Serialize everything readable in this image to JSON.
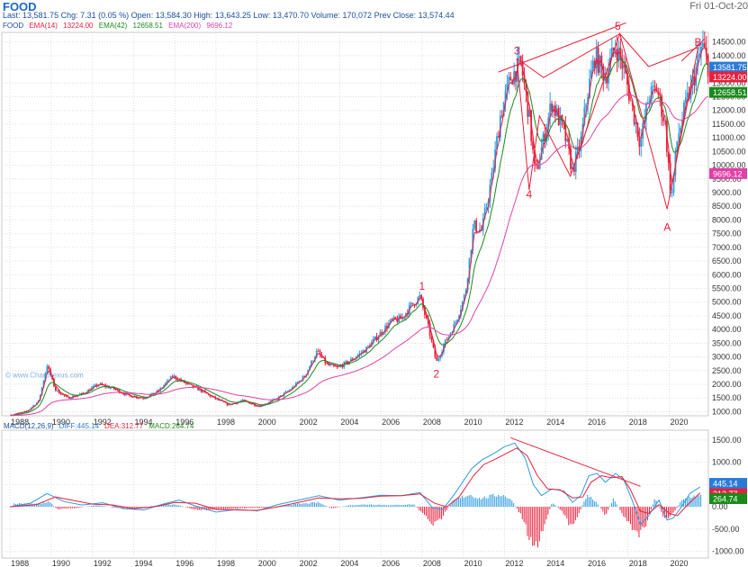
{
  "header": {
    "title": "FOOD",
    "date": "Fri 01-Oct-20",
    "last_label": "Last:",
    "last": "13,581.75",
    "chg_label": "Chg:",
    "chg": "7.31 (0.05 %)",
    "open_label": "Open:",
    "open": "13,584.30",
    "high_label": "High:",
    "high": "13,643.25",
    "low_label": "Low:",
    "low": "13,470.70",
    "volume_label": "Volume:",
    "volume": "170,072",
    "prev_label": "Prev Close:",
    "prev": "13,574.44",
    "legend": {
      "symbol": "FOOD",
      "ema14": "EMA(14)",
      "ema14_val": "13224.00",
      "ema42": "EMA(42)",
      "ema42_val": "12658.51",
      "ema200": "EMA(200)",
      "ema200_val": "9696.12"
    }
  },
  "chart_data": [
    {
      "type": "candlestick",
      "title": "FOOD",
      "x_ticks": [
        "1988",
        "1990",
        "1992",
        "1994",
        "1996",
        "1998",
        "2000",
        "2002",
        "2004",
        "2006",
        "2008",
        "2010",
        "2012",
        "2014",
        "2016",
        "2018",
        "2020"
      ],
      "xlim": [
        1987.6,
        2021.9
      ],
      "y_ticks": [
        1000,
        1500,
        2000,
        2500,
        3000,
        3500,
        4000,
        4500,
        5000,
        5500,
        6000,
        6500,
        7000,
        7500,
        8000,
        8500,
        9000,
        9500,
        10000,
        10500,
        11000,
        11500,
        12000,
        12500,
        13000,
        13500,
        14000,
        14500
      ],
      "ylim": [
        850,
        14850
      ],
      "price_path": [
        [
          1988.0,
          880
        ],
        [
          1988.8,
          1000
        ],
        [
          1989.4,
          1400
        ],
        [
          1989.8,
          2700
        ],
        [
          1990.2,
          1800
        ],
        [
          1990.8,
          1500
        ],
        [
          1991.5,
          1650
        ],
        [
          1992.3,
          2000
        ],
        [
          1993.0,
          1850
        ],
        [
          1993.7,
          1600
        ],
        [
          1994.5,
          1500
        ],
        [
          1995.2,
          1750
        ],
        [
          1995.9,
          2300
        ],
        [
          1996.6,
          2000
        ],
        [
          1997.2,
          1800
        ],
        [
          1997.9,
          1500
        ],
        [
          1998.6,
          1250
        ],
        [
          1999.3,
          1400
        ],
        [
          2000.1,
          1200
        ],
        [
          2000.9,
          1450
        ],
        [
          2001.6,
          1800
        ],
        [
          2002.3,
          2300
        ],
        [
          2002.9,
          3200
        ],
        [
          2003.4,
          2700
        ],
        [
          2003.9,
          2600
        ],
        [
          2004.6,
          2900
        ],
        [
          2005.3,
          3300
        ],
        [
          2005.9,
          3800
        ],
        [
          2006.5,
          4300
        ],
        [
          2007.0,
          4400
        ],
        [
          2007.5,
          4900
        ],
        [
          2007.9,
          5200
        ],
        [
          2008.3,
          4100
        ],
        [
          2008.7,
          2800
        ],
        [
          2009.1,
          3500
        ],
        [
          2009.6,
          4200
        ],
        [
          2010.1,
          5300
        ],
        [
          2010.5,
          7800
        ],
        [
          2010.9,
          7600
        ],
        [
          2011.4,
          9600
        ],
        [
          2011.8,
          11800
        ],
        [
          2012.3,
          13200
        ],
        [
          2012.8,
          13700
        ],
        [
          2013.2,
          11800
        ],
        [
          2013.5,
          9600
        ],
        [
          2013.8,
          10600
        ],
        [
          2014.3,
          12300
        ],
        [
          2014.9,
          11200
        ],
        [
          2015.3,
          9800
        ],
        [
          2015.7,
          10800
        ],
        [
          2016.0,
          12500
        ],
        [
          2016.4,
          14000
        ],
        [
          2016.9,
          13200
        ],
        [
          2017.4,
          14400
        ],
        [
          2017.8,
          13500
        ],
        [
          2018.2,
          12100
        ],
        [
          2018.6,
          10800
        ],
        [
          2019.0,
          12500
        ],
        [
          2019.4,
          12800
        ],
        [
          2019.8,
          11500
        ],
        [
          2020.1,
          8700
        ],
        [
          2020.4,
          11000
        ],
        [
          2020.8,
          12200
        ],
        [
          2021.2,
          13200
        ],
        [
          2021.6,
          14400
        ],
        [
          2021.9,
          13580
        ]
      ],
      "series": [
        {
          "name": "EMA(14)",
          "color": "#e8203c",
          "last": 13224.0
        },
        {
          "name": "EMA(42)",
          "color": "#1a8a1a",
          "last": 12658.51
        },
        {
          "name": "EMA(200)",
          "color": "#e040a8",
          "last": 9696.12
        }
      ],
      "value_labels": [
        {
          "text": "13581.75",
          "value": 13581.75,
          "color": "#2b7bd6"
        },
        {
          "text": "13224.00",
          "value": 13224.0,
          "color": "#e8203c"
        },
        {
          "text": "12658.51",
          "value": 12658.51,
          "color": "#1a8a1a"
        },
        {
          "text": "9696.12",
          "value": 9696.12,
          "color": "#e040a8"
        }
      ],
      "annotations": {
        "labels": [
          {
            "text": "1",
            "x": 2008.0,
            "y": 5450
          },
          {
            "text": "2",
            "x": 2008.7,
            "y": 2250
          },
          {
            "text": "3",
            "x": 2012.6,
            "y": 14050
          },
          {
            "text": "4",
            "x": 2013.2,
            "y": 8800
          },
          {
            "text": "5",
            "x": 2017.5,
            "y": 14950
          },
          {
            "text": "A",
            "x": 2019.9,
            "y": 7600
          },
          {
            "text": "B",
            "x": 2021.4,
            "y": 14350
          }
        ],
        "lines": [
          [
            [
              2011.7,
              13400
            ],
            [
              2017.9,
              15200
            ]
          ],
          [
            [
              2020.6,
              13800
            ],
            [
              2021.7,
              14600
            ]
          ],
          [
            [
              2012.6,
              13900
            ],
            [
              2013.9,
              13200
            ],
            [
              2017.6,
              14800
            ],
            [
              2019.0,
              13600
            ],
            [
              2021.4,
              14300
            ]
          ],
          [
            [
              2012.6,
              13900
            ],
            [
              2013.2,
              9100
            ],
            [
              2013.7,
              11800
            ],
            [
              2015.2,
              9600
            ],
            [
              2017.6,
              14800
            ],
            [
              2019.9,
              8400
            ],
            [
              2021.4,
              14300
            ]
          ]
        ]
      }
    },
    {
      "type": "macd",
      "title": "MACD(12,26,9)",
      "diff_label": "DIFF:445.14",
      "dea_label": "DEA:312.77",
      "macd_label": "MACD:264.74",
      "y_ticks": [
        -1000,
        -500,
        0,
        500,
        1000,
        1500
      ],
      "ylim": [
        -1150,
        1720
      ],
      "diff_path": [
        [
          1988.0,
          0
        ],
        [
          1989.0,
          80
        ],
        [
          1989.8,
          300
        ],
        [
          1990.6,
          120
        ],
        [
          1991.5,
          40
        ],
        [
          1992.5,
          90
        ],
        [
          1993.5,
          -40
        ],
        [
          1994.5,
          -70
        ],
        [
          1995.5,
          70
        ],
        [
          1996.2,
          150
        ],
        [
          1997.0,
          20
        ],
        [
          1998.0,
          -120
        ],
        [
          1999.0,
          -60
        ],
        [
          2000.0,
          -90
        ],
        [
          2001.0,
          50
        ],
        [
          2002.0,
          150
        ],
        [
          2003.0,
          250
        ],
        [
          2004.0,
          150
        ],
        [
          2005.0,
          200
        ],
        [
          2006.0,
          260
        ],
        [
          2007.0,
          250
        ],
        [
          2007.9,
          320
        ],
        [
          2008.5,
          -20
        ],
        [
          2009.0,
          -60
        ],
        [
          2009.6,
          300
        ],
        [
          2010.4,
          850
        ],
        [
          2010.9,
          1050
        ],
        [
          2011.5,
          1200
        ],
        [
          2012.0,
          1350
        ],
        [
          2012.5,
          1430
        ],
        [
          2013.0,
          1100
        ],
        [
          2013.4,
          500
        ],
        [
          2013.8,
          250
        ],
        [
          2014.3,
          400
        ],
        [
          2014.9,
          350
        ],
        [
          2015.3,
          100
        ],
        [
          2015.7,
          250
        ],
        [
          2016.1,
          700
        ],
        [
          2016.5,
          750
        ],
        [
          2016.9,
          550
        ],
        [
          2017.4,
          750
        ],
        [
          2017.8,
          600
        ],
        [
          2018.2,
          150
        ],
        [
          2018.6,
          -400
        ],
        [
          2019.0,
          -200
        ],
        [
          2019.5,
          150
        ],
        [
          2019.9,
          -300
        ],
        [
          2020.2,
          -250
        ],
        [
          2020.6,
          0
        ],
        [
          2021.0,
          300
        ],
        [
          2021.5,
          445
        ]
      ],
      "dea_path": [
        [
          1988.0,
          0
        ],
        [
          1989.3,
          50
        ],
        [
          1990.2,
          220
        ],
        [
          1991.0,
          150
        ],
        [
          1992.0,
          60
        ],
        [
          1993.0,
          40
        ],
        [
          1994.0,
          -40
        ],
        [
          1995.0,
          0
        ],
        [
          1996.0,
          100
        ],
        [
          1997.0,
          80
        ],
        [
          1998.0,
          -60
        ],
        [
          1999.0,
          -70
        ],
        [
          2000.0,
          -80
        ],
        [
          2001.0,
          0
        ],
        [
          2002.0,
          100
        ],
        [
          2003.0,
          200
        ],
        [
          2004.0,
          180
        ],
        [
          2005.0,
          190
        ],
        [
          2006.0,
          240
        ],
        [
          2007.0,
          250
        ],
        [
          2007.9,
          290
        ],
        [
          2008.6,
          80
        ],
        [
          2009.2,
          0
        ],
        [
          2009.8,
          220
        ],
        [
          2010.5,
          700
        ],
        [
          2011.0,
          950
        ],
        [
          2011.6,
          1080
        ],
        [
          2012.1,
          1200
        ],
        [
          2012.6,
          1320
        ],
        [
          2013.1,
          1150
        ],
        [
          2013.6,
          700
        ],
        [
          2014.1,
          400
        ],
        [
          2014.7,
          380
        ],
        [
          2015.3,
          200
        ],
        [
          2015.8,
          220
        ],
        [
          2016.2,
          550
        ],
        [
          2016.7,
          700
        ],
        [
          2017.2,
          650
        ],
        [
          2017.7,
          680
        ],
        [
          2018.1,
          400
        ],
        [
          2018.6,
          -100
        ],
        [
          2019.0,
          -150
        ],
        [
          2019.5,
          50
        ],
        [
          2020.0,
          -150
        ],
        [
          2020.4,
          -200
        ],
        [
          2020.9,
          50
        ],
        [
          2021.5,
          313
        ]
      ],
      "histogram": [
        [
          1989.5,
          80
        ],
        [
          1989.9,
          120
        ],
        [
          1990.3,
          -60
        ],
        [
          1990.7,
          -40
        ],
        [
          1991.2,
          -30
        ],
        [
          1992.2,
          40
        ],
        [
          1993.2,
          -30
        ],
        [
          1994.2,
          -40
        ],
        [
          1995.2,
          40
        ],
        [
          1996.0,
          60
        ],
        [
          1997.0,
          -70
        ],
        [
          1997.6,
          -80
        ],
        [
          1998.4,
          -60
        ],
        [
          1999.5,
          -30
        ],
        [
          2000.5,
          -20
        ],
        [
          2001.5,
          50
        ],
        [
          2002.5,
          90
        ],
        [
          2003.0,
          100
        ],
        [
          2003.6,
          -40
        ],
        [
          2004.5,
          40
        ],
        [
          2005.5,
          60
        ],
        [
          2006.5,
          40
        ],
        [
          2007.6,
          60
        ],
        [
          2008.2,
          -250
        ],
        [
          2008.6,
          -450
        ],
        [
          2008.9,
          -300
        ],
        [
          2009.5,
          150
        ],
        [
          2010.3,
          300
        ],
        [
          2010.8,
          200
        ],
        [
          2011.3,
          250
        ],
        [
          2011.8,
          300
        ],
        [
          2012.3,
          200
        ],
        [
          2012.8,
          -200
        ],
        [
          2013.2,
          -750
        ],
        [
          2013.5,
          -1000
        ],
        [
          2013.9,
          -500
        ],
        [
          2014.3,
          100
        ],
        [
          2014.8,
          -100
        ],
        [
          2015.2,
          -450
        ],
        [
          2015.6,
          -200
        ],
        [
          2016.0,
          300
        ],
        [
          2016.4,
          150
        ],
        [
          2016.9,
          -200
        ],
        [
          2017.3,
          200
        ],
        [
          2017.7,
          -150
        ],
        [
          2018.1,
          -450
        ],
        [
          2018.5,
          -650
        ],
        [
          2018.8,
          -500
        ],
        [
          2019.3,
          200
        ],
        [
          2019.8,
          -300
        ],
        [
          2020.2,
          -150
        ],
        [
          2020.6,
          150
        ],
        [
          2021.0,
          250
        ],
        [
          2021.4,
          265
        ]
      ],
      "trendline": [
        [
          2012.3,
          1550
        ],
        [
          2018.6,
          460
        ]
      ],
      "value_labels": [
        {
          "text": "445.14",
          "value": 445.14,
          "color": "#2b7bd6"
        },
        {
          "text": "312.77",
          "value": 312.77,
          "color": "#e8203c"
        },
        {
          "text": "264.74",
          "value": 264.74,
          "color": "#1a8a1a"
        }
      ]
    }
  ]
}
